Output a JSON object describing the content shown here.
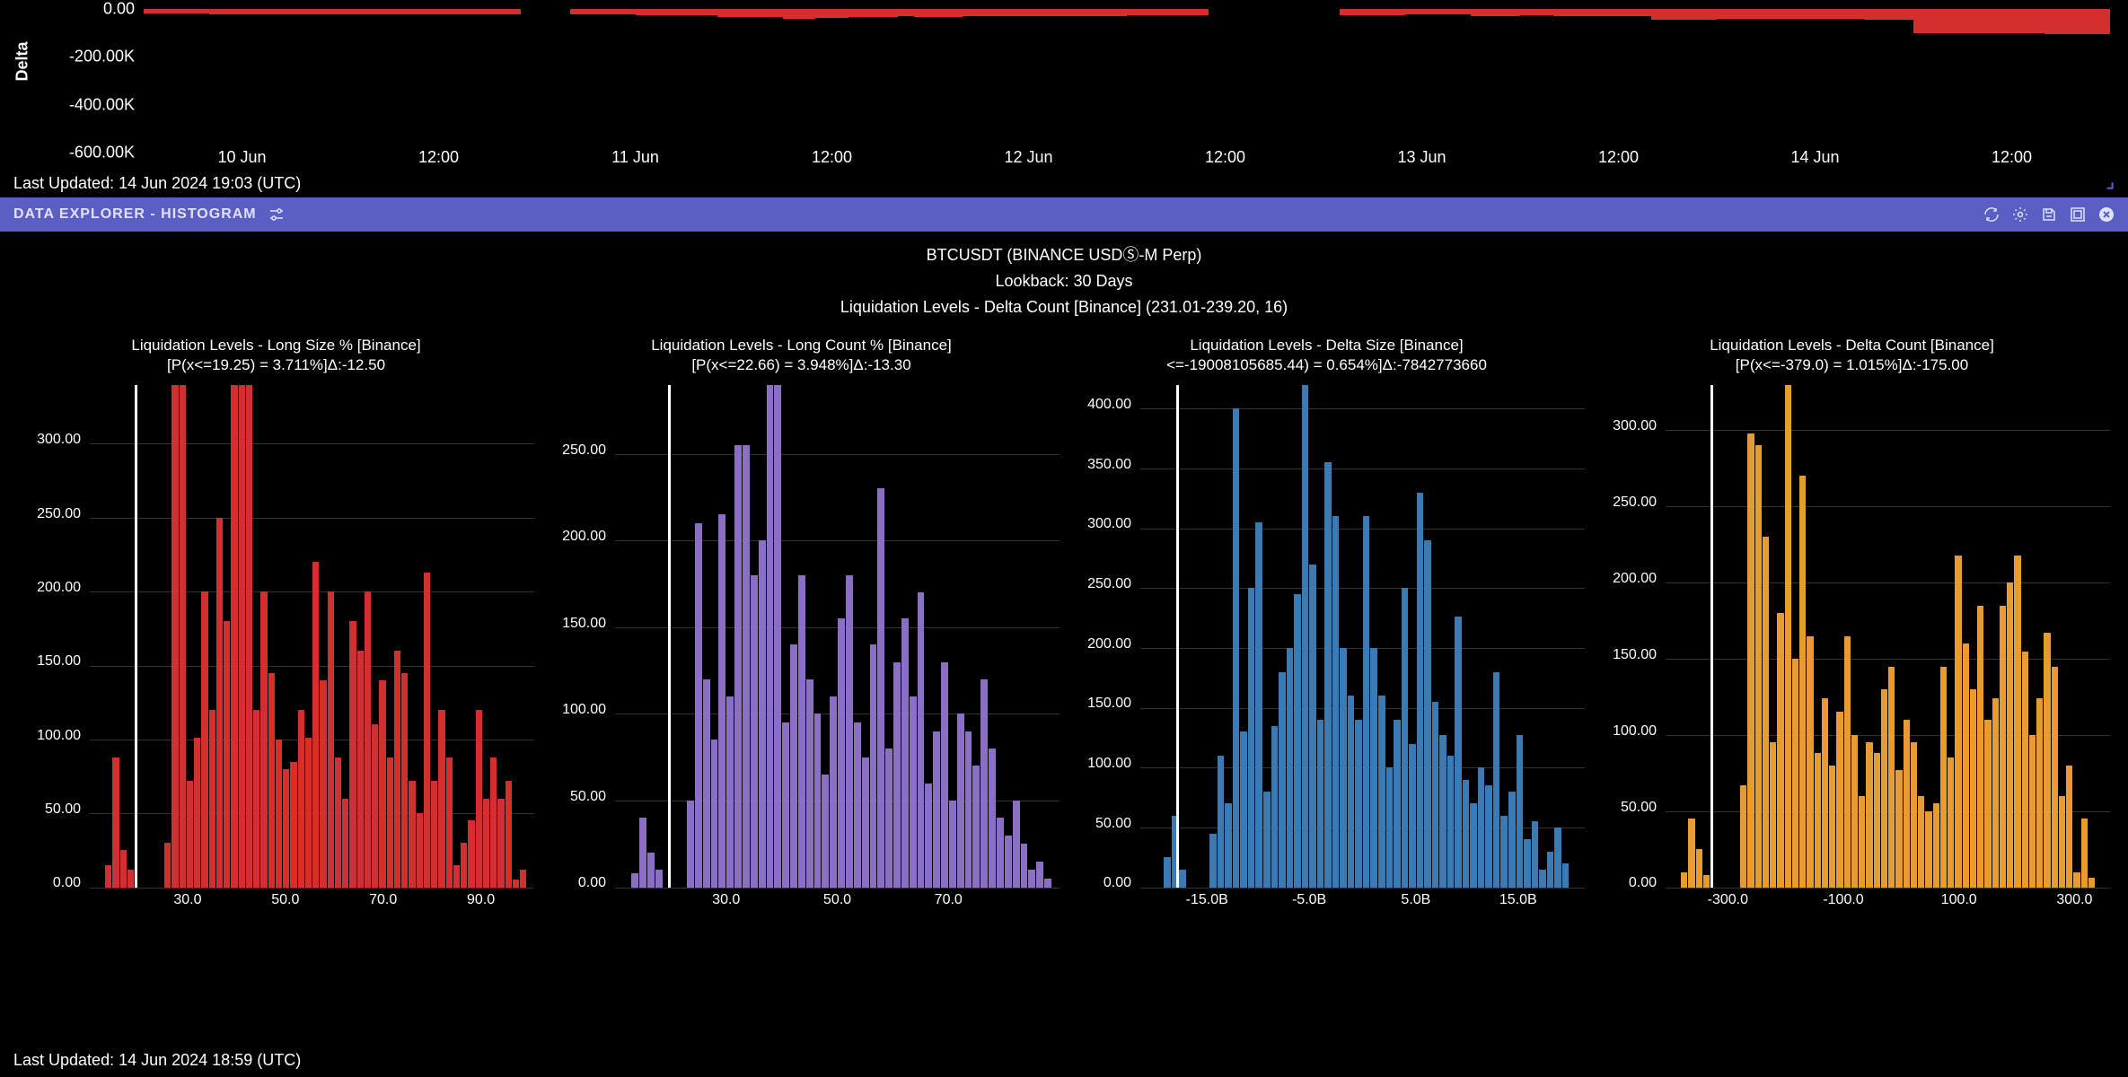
{
  "top_chart": {
    "y_label": "Delta",
    "y_ticks": [
      "0.00",
      "-200.00K",
      "-400.00K",
      "-600.00K"
    ],
    "y_tick_positions": [
      0,
      33.3,
      66.6,
      100
    ],
    "x_ticks": [
      "10 Jun",
      "12:00",
      "11 Jun",
      "12:00",
      "12 Jun",
      "12:00",
      "13 Jun",
      "12:00",
      "14 Jun",
      "12:00"
    ],
    "x_tick_positions": [
      5,
      15,
      25,
      35,
      45,
      55,
      65,
      75,
      85,
      95
    ],
    "last_updated": "Last Updated: 14 Jun 2024 19:03 (UTC)",
    "positive_color": "#2e7d32",
    "negative_color": "#d32f2f",
    "background": "#000000",
    "values": [
      -20,
      -20,
      -20,
      -20,
      -21,
      -21,
      -22,
      -22,
      -22,
      -22,
      -22,
      -22,
      -22,
      -22,
      -22,
      -22,
      -23,
      -23,
      -23,
      -23,
      -23,
      -23,
      -23,
      5,
      5,
      5,
      -22,
      -22,
      -23,
      -24,
      -25,
      -25,
      -26,
      -26,
      -27,
      -32,
      -32,
      -32,
      -35,
      -40,
      -40,
      -38,
      -38,
      -35,
      -35,
      -35,
      -30,
      -32,
      -32,
      -32,
      -30,
      -30,
      -30,
      -30,
      -30,
      -30,
      -30,
      -30,
      -30,
      -30,
      -27,
      -27,
      -27,
      -27,
      -27,
      8,
      8,
      10,
      10,
      10,
      10,
      10,
      8,
      -25,
      -25,
      -25,
      -25,
      -22,
      -22,
      -22,
      -22,
      -30,
      -30,
      -30,
      -25,
      -25,
      -30,
      -30,
      -30,
      -30,
      -30,
      -30,
      -45,
      -45,
      -45,
      -45,
      -42,
      -42,
      -42,
      -42,
      -40,
      -40,
      -40,
      -40,
      -40,
      -45,
      -45,
      -45,
      -100,
      -100,
      -100,
      -100,
      -100,
      -100,
      -100,
      -100,
      -105,
      -105,
      -105,
      -105
    ]
  },
  "panel": {
    "title": "DATA EXPLORER - HISTOGRAM"
  },
  "header": {
    "line1": "BTCUSDT (BINANCE USDⓈ-M Perp)",
    "line2": "Lookback: 30 Days",
    "line3": "Liquidation Levels - Delta Count [Binance] (231.01-239.20, 16)"
  },
  "histograms": [
    {
      "title1": "Liquidation Levels - Long Size % [Binance]",
      "title2": "[P(x<=19.25) = 3.711%]Δ:-12.50",
      "color": "#d32f2f",
      "y_ticks": [
        "0.00",
        "50.00",
        "100.00",
        "150.00",
        "200.00",
        "250.00",
        "300.00"
      ],
      "y_max": 340,
      "x_ticks": [
        "30.0",
        "50.0",
        "70.0",
        "90.0"
      ],
      "x_tick_positions": [
        22,
        44,
        66,
        88
      ],
      "marker_pos": 10,
      "values": [
        0,
        0,
        15,
        88,
        25,
        12,
        0,
        0,
        0,
        0,
        30,
        340,
        340,
        72,
        101,
        200,
        120,
        250,
        180,
        340,
        340,
        340,
        120,
        200,
        145,
        100,
        80,
        85,
        120,
        101,
        220,
        140,
        200,
        88,
        60,
        180,
        160,
        200,
        110,
        140,
        88,
        160,
        145,
        72,
        50,
        213,
        72,
        120,
        88,
        15,
        30,
        45,
        120,
        60,
        88,
        60,
        72,
        5,
        12,
        0
      ]
    },
    {
      "title1": "Liquidation Levels - Long Count % [Binance]",
      "title2": "[P(x<=22.66) = 3.948%]Δ:-13.30",
      "color": "#8b6fc4",
      "y_ticks": [
        "0.00",
        "50.00",
        "100.00",
        "150.00",
        "200.00",
        "250.00"
      ],
      "y_max": 290,
      "x_ticks": [
        "30.0",
        "50.0",
        "70.0"
      ],
      "x_tick_positions": [
        25,
        50,
        75
      ],
      "marker_pos": 12,
      "values": [
        0,
        0,
        8,
        40,
        20,
        10,
        0,
        0,
        0,
        50,
        210,
        120,
        85,
        215,
        110,
        255,
        255,
        180,
        200,
        290,
        290,
        95,
        140,
        180,
        120,
        100,
        65,
        110,
        155,
        180,
        95,
        75,
        140,
        230,
        80,
        130,
        155,
        110,
        170,
        60,
        90,
        130,
        50,
        100,
        90,
        70,
        120,
        80,
        40,
        30,
        50,
        25,
        10,
        15,
        5,
        0
      ]
    },
    {
      "title1": "Liquidation Levels - Delta Size [Binance]",
      "title2": "<=-19008105685.44) = 0.654%]Δ:-7842773660",
      "color": "#3a7bb5",
      "y_ticks": [
        "0.00",
        "50.00",
        "100.00",
        "150.00",
        "200.00",
        "250.00",
        "300.00",
        "350.00",
        "400.00"
      ],
      "y_max": 420,
      "x_ticks": [
        "-15.0B",
        "-5.0B",
        "5.0B",
        "15.0B"
      ],
      "x_tick_positions": [
        15,
        38,
        62,
        85
      ],
      "marker_pos": 8,
      "values": [
        0,
        0,
        0,
        25,
        60,
        15,
        0,
        0,
        0,
        45,
        110,
        70,
        400,
        130,
        250,
        305,
        80,
        135,
        180,
        200,
        245,
        420,
        270,
        140,
        355,
        310,
        200,
        160,
        140,
        310,
        200,
        160,
        100,
        140,
        250,
        120,
        330,
        290,
        155,
        127,
        110,
        226,
        90,
        70,
        100,
        85,
        180,
        60,
        80,
        127,
        40,
        55,
        15,
        30,
        50,
        20,
        0,
        0
      ]
    },
    {
      "title1": "Liquidation Levels - Delta Count [Binance]",
      "title2": "[P(x<=-379.0) = 1.015%]Δ:-175.00",
      "color": "#e89b2e",
      "y_ticks": [
        "0.00",
        "50.00",
        "100.00",
        "150.00",
        "200.00",
        "250.00",
        "300.00"
      ],
      "y_max": 330,
      "x_ticks": [
        "-300.0",
        "-100.0",
        "100.0",
        "300.0"
      ],
      "x_tick_positions": [
        14,
        40,
        66,
        92
      ],
      "marker_pos": 10,
      "values": [
        0,
        0,
        10,
        45,
        25,
        8,
        0,
        0,
        0,
        0,
        67,
        298,
        290,
        230,
        95,
        180,
        330,
        150,
        270,
        165,
        88,
        124,
        80,
        115,
        165,
        100,
        60,
        95,
        88,
        130,
        145,
        77,
        110,
        95,
        60,
        50,
        55,
        145,
        85,
        218,
        160,
        130,
        185,
        110,
        124,
        185,
        200,
        218,
        155,
        100,
        124,
        167,
        145,
        60,
        80,
        10,
        45,
        6,
        0,
        0
      ]
    }
  ],
  "bottom_updated": "Last Updated: 14 Jun 2024 18:59 (UTC)"
}
